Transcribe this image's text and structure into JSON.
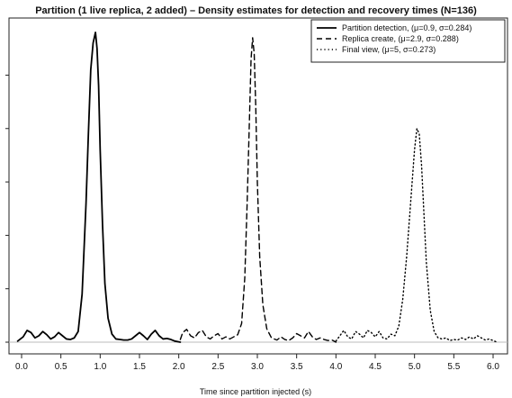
{
  "chart_data": {
    "type": "line",
    "title": "Partition (1 live replica, 2 added) – Density estimates for detection and recovery times (N=136)",
    "xlabel": "Time since partition injected (s)",
    "ylabel": "",
    "xlim": [
      -0.1,
      6.2
    ],
    "ylim": [
      0,
      5.8
    ],
    "x_ticks": [
      0.0,
      0.5,
      1.0,
      1.5,
      2.0,
      2.5,
      3.0,
      3.5,
      4.0,
      4.5,
      5.0,
      5.5,
      6.0
    ],
    "x_tick_labels": [
      "0.0",
      "0.5",
      "1.0",
      "1.5",
      "2.0",
      "2.5",
      "3.0",
      "3.5",
      "4.0",
      "4.5",
      "5.0",
      "5.5",
      "6.0"
    ],
    "y_ticks": [
      0,
      1,
      2,
      3,
      4,
      5
    ],
    "grid": false,
    "legend_position": "top-right",
    "series": [
      {
        "name": "Partition detection, (μ=0.9, σ=0.284)",
        "style": "solid",
        "x": [
          -0.05,
          0.02,
          0.07,
          0.12,
          0.17,
          0.22,
          0.27,
          0.32,
          0.37,
          0.42,
          0.47,
          0.52,
          0.57,
          0.62,
          0.67,
          0.72,
          0.77,
          0.82,
          0.85,
          0.88,
          0.91,
          0.94,
          0.96,
          0.98,
          1.0,
          1.03,
          1.06,
          1.1,
          1.15,
          1.2,
          1.25,
          1.3,
          1.35,
          1.4,
          1.45,
          1.5,
          1.55,
          1.6,
          1.65,
          1.7,
          1.75,
          1.8,
          1.85,
          1.9,
          1.95,
          2.02
        ],
        "y": [
          0.02,
          0.1,
          0.22,
          0.18,
          0.08,
          0.12,
          0.2,
          0.14,
          0.06,
          0.1,
          0.18,
          0.12,
          0.06,
          0.05,
          0.08,
          0.2,
          0.9,
          2.6,
          3.9,
          5.1,
          5.6,
          5.8,
          5.5,
          4.8,
          3.6,
          2.2,
          1.1,
          0.45,
          0.15,
          0.06,
          0.05,
          0.04,
          0.04,
          0.06,
          0.12,
          0.18,
          0.12,
          0.05,
          0.15,
          0.22,
          0.12,
          0.06,
          0.07,
          0.05,
          0.02,
          0.0
        ]
      },
      {
        "name": "Replica create, (μ=2.9, σ=0.288)",
        "style": "dashed",
        "x": [
          2.02,
          2.05,
          2.1,
          2.15,
          2.2,
          2.25,
          2.3,
          2.35,
          2.4,
          2.45,
          2.5,
          2.55,
          2.6,
          2.65,
          2.7,
          2.75,
          2.8,
          2.84,
          2.87,
          2.9,
          2.92,
          2.94,
          2.96,
          2.98,
          3.0,
          3.03,
          3.07,
          3.12,
          3.18,
          3.25,
          3.3,
          3.35,
          3.4,
          3.45,
          3.5,
          3.55,
          3.6,
          3.65,
          3.7,
          3.75,
          3.8,
          3.85,
          3.9,
          3.95,
          4.0
        ],
        "y": [
          0.05,
          0.18,
          0.24,
          0.12,
          0.08,
          0.18,
          0.22,
          0.1,
          0.06,
          0.12,
          0.16,
          0.06,
          0.1,
          0.06,
          0.1,
          0.14,
          0.35,
          1.2,
          2.6,
          4.2,
          5.3,
          5.7,
          5.4,
          4.4,
          3.0,
          1.6,
          0.7,
          0.25,
          0.08,
          0.04,
          0.1,
          0.05,
          0.03,
          0.08,
          0.16,
          0.12,
          0.08,
          0.2,
          0.1,
          0.05,
          0.08,
          0.05,
          0.03,
          0.04,
          0.0
        ]
      },
      {
        "name": "Final view, (μ=5, σ=0.273)",
        "style": "dotted",
        "x": [
          4.0,
          4.05,
          4.1,
          4.15,
          4.2,
          4.25,
          4.3,
          4.35,
          4.4,
          4.45,
          4.5,
          4.55,
          4.6,
          4.65,
          4.7,
          4.75,
          4.8,
          4.85,
          4.9,
          4.95,
          5.0,
          5.03,
          5.06,
          5.09,
          5.12,
          5.15,
          5.2,
          5.25,
          5.3,
          5.35,
          5.4,
          5.45,
          5.5,
          5.55,
          5.6,
          5.65,
          5.7,
          5.75,
          5.8,
          5.85,
          5.9,
          5.95,
          6.0,
          6.05
        ],
        "y": [
          0.02,
          0.12,
          0.22,
          0.1,
          0.06,
          0.2,
          0.15,
          0.08,
          0.22,
          0.18,
          0.1,
          0.2,
          0.08,
          0.06,
          0.15,
          0.12,
          0.3,
          0.8,
          1.6,
          2.6,
          3.6,
          4.0,
          3.9,
          3.3,
          2.4,
          1.5,
          0.6,
          0.2,
          0.08,
          0.06,
          0.08,
          0.03,
          0.05,
          0.04,
          0.08,
          0.05,
          0.1,
          0.06,
          0.12,
          0.08,
          0.04,
          0.06,
          0.03,
          0.0
        ]
      }
    ]
  },
  "legend": {
    "entries": [
      "Partition detection, (μ=0.9, σ=0.284)",
      "Replica create, (μ=2.9, σ=0.288)",
      "Final view, (μ=5, σ=0.273)"
    ]
  }
}
